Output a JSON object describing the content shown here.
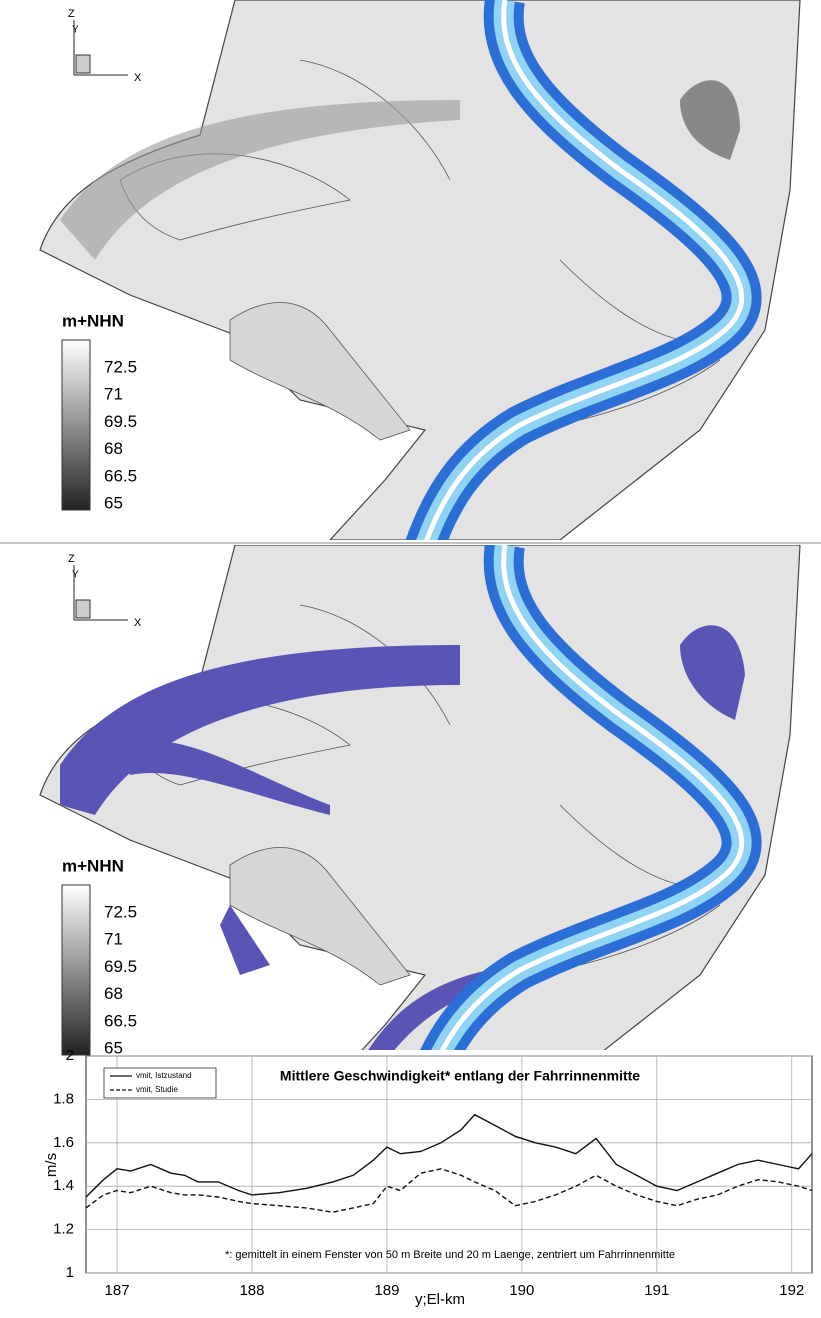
{
  "maps": [
    {
      "legend_title": "m+NHN",
      "legend_ticks": [
        72.5,
        71,
        69.5,
        68,
        66.5,
        65
      ],
      "axes": {
        "z": "Z",
        "y": "Y",
        "x": "X"
      }
    },
    {
      "legend_title": "m+NHN",
      "legend_ticks": [
        72.5,
        71,
        69.5,
        68,
        66.5,
        65
      ],
      "axes": {
        "z": "Z",
        "y": "Y",
        "x": "X"
      }
    }
  ],
  "chart_data": {
    "type": "line",
    "title": "Mittlere Geschwindigkeit* entlang der Fahrrinnenmitte",
    "note": "*: gemittelt in einem Fenster von 50 m Breite und 20 m Laenge, zentriert um Fahrrinnenmitte",
    "xlabel": "y;El-km",
    "ylabel": "m/s",
    "xlim": [
      186.77,
      192.15
    ],
    "ylim": [
      1,
      2
    ],
    "xticks": [
      187,
      188,
      189,
      190,
      191,
      192
    ],
    "yticks": [
      1,
      1.2,
      1.4,
      1.6,
      1.8,
      2
    ],
    "grid": true,
    "legend": "upper left",
    "x": [
      186.77,
      186.9,
      187.0,
      187.1,
      187.25,
      187.4,
      187.5,
      187.6,
      187.75,
      187.9,
      188.0,
      188.2,
      188.4,
      188.6,
      188.75,
      188.9,
      189.0,
      189.1,
      189.25,
      189.4,
      189.55,
      189.65,
      189.8,
      189.95,
      190.1,
      190.25,
      190.4,
      190.55,
      190.7,
      190.85,
      191.0,
      191.15,
      191.3,
      191.45,
      191.6,
      191.75,
      191.9,
      192.05,
      192.15
    ],
    "series": [
      {
        "name": "vmit, Istzustand",
        "color": "#111111",
        "dash": false,
        "values": [
          1.35,
          1.43,
          1.48,
          1.47,
          1.5,
          1.46,
          1.45,
          1.42,
          1.42,
          1.38,
          1.36,
          1.37,
          1.39,
          1.42,
          1.45,
          1.52,
          1.58,
          1.55,
          1.56,
          1.6,
          1.66,
          1.73,
          1.68,
          1.63,
          1.6,
          1.58,
          1.55,
          1.62,
          1.5,
          1.45,
          1.4,
          1.38,
          1.42,
          1.46,
          1.5,
          1.52,
          1.5,
          1.48,
          1.55
        ]
      },
      {
        "name": "vmit, Studie",
        "color": "#111111",
        "dash": true,
        "values": [
          1.3,
          1.36,
          1.38,
          1.37,
          1.4,
          1.37,
          1.36,
          1.36,
          1.35,
          1.33,
          1.32,
          1.31,
          1.3,
          1.28,
          1.3,
          1.32,
          1.4,
          1.38,
          1.46,
          1.48,
          1.45,
          1.42,
          1.38,
          1.31,
          1.33,
          1.36,
          1.4,
          1.45,
          1.4,
          1.36,
          1.33,
          1.31,
          1.34,
          1.36,
          1.4,
          1.43,
          1.42,
          1.4,
          1.38
        ]
      }
    ]
  }
}
